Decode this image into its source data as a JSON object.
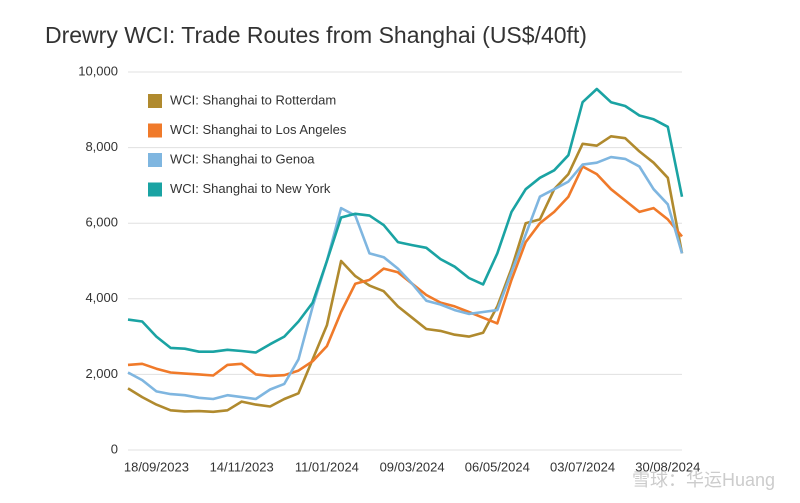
{
  "chart_data": {
    "type": "line",
    "title": "Drewry WCI: Trade Routes from Shanghai (US$/40ft)",
    "categories": [
      null,
      null,
      "18/09/2023",
      null,
      null,
      null,
      null,
      null,
      "14/11/2023",
      null,
      null,
      null,
      null,
      null,
      "11/01/2024",
      null,
      null,
      null,
      null,
      null,
      "09/03/2024",
      null,
      null,
      null,
      null,
      null,
      "06/05/2024",
      null,
      null,
      null,
      null,
      null,
      "03/07/2024",
      null,
      null,
      null,
      null,
      null,
      "30/08/2024",
      null
    ],
    "series": [
      {
        "name": "WCI: Shanghai to Rotterdam",
        "color": "#b08a2e",
        "values": [
          1630,
          1400,
          1200,
          1050,
          1020,
          1030,
          1010,
          1050,
          1280,
          1200,
          1150,
          1350,
          1500,
          2400,
          3300,
          5000,
          4600,
          4350,
          4200,
          3800,
          3500,
          3200,
          3150,
          3050,
          3000,
          3100,
          3800,
          4800,
          6000,
          6100,
          6900,
          7300,
          8100,
          8050,
          8300,
          8250,
          7900,
          7600,
          7200,
          5200
        ]
      },
      {
        "name": "WCI: Shanghai to Los Angeles",
        "color": "#f07a2a",
        "values": [
          2250,
          2280,
          2150,
          2050,
          2020,
          2000,
          1970,
          2250,
          2280,
          2000,
          1960,
          1980,
          2100,
          2350,
          2750,
          3650,
          4400,
          4500,
          4800,
          4700,
          4400,
          4100,
          3900,
          3800,
          3650,
          3500,
          3350,
          4500,
          5500,
          6000,
          6300,
          6700,
          7500,
          7300,
          6900,
          6600,
          6300,
          6400,
          6100,
          5650
        ]
      },
      {
        "name": "WCI: Shanghai to Genoa",
        "color": "#7fb6e0",
        "values": [
          2050,
          1850,
          1550,
          1480,
          1450,
          1380,
          1350,
          1450,
          1400,
          1350,
          1600,
          1750,
          2400,
          3800,
          5000,
          6400,
          6200,
          5200,
          5100,
          4800,
          4400,
          3950,
          3850,
          3700,
          3600,
          3650,
          3700,
          4700,
          5700,
          6700,
          6900,
          7100,
          7550,
          7600,
          7750,
          7700,
          7500,
          6900,
          6500,
          5200
        ]
      },
      {
        "name": "WCI: Shanghai to New York",
        "color": "#1aa3a3",
        "values": [
          3450,
          3400,
          3000,
          2700,
          2680,
          2600,
          2600,
          2650,
          2620,
          2580,
          2800,
          3000,
          3400,
          3900,
          5000,
          6150,
          6250,
          6200,
          5950,
          5500,
          5420,
          5350,
          5050,
          4850,
          4550,
          4380,
          5200,
          6300,
          6900,
          7200,
          7400,
          7800,
          9200,
          9550,
          9200,
          9100,
          8850,
          8750,
          8550,
          6700
        ]
      }
    ],
    "ylim": [
      0,
      10000
    ],
    "yticks": [
      0,
      {
        "value": 2000,
        "label": "2,000"
      },
      {
        "value": 4000,
        "label": "4,000"
      },
      {
        "value": 6000,
        "label": "6,000"
      },
      {
        "value": 8000,
        "label": "8,000"
      },
      {
        "value": 10000,
        "label": "10,000"
      }
    ],
    "grid": true,
    "legend": "upper-left",
    "watermark": "雪球：华运Huang"
  }
}
